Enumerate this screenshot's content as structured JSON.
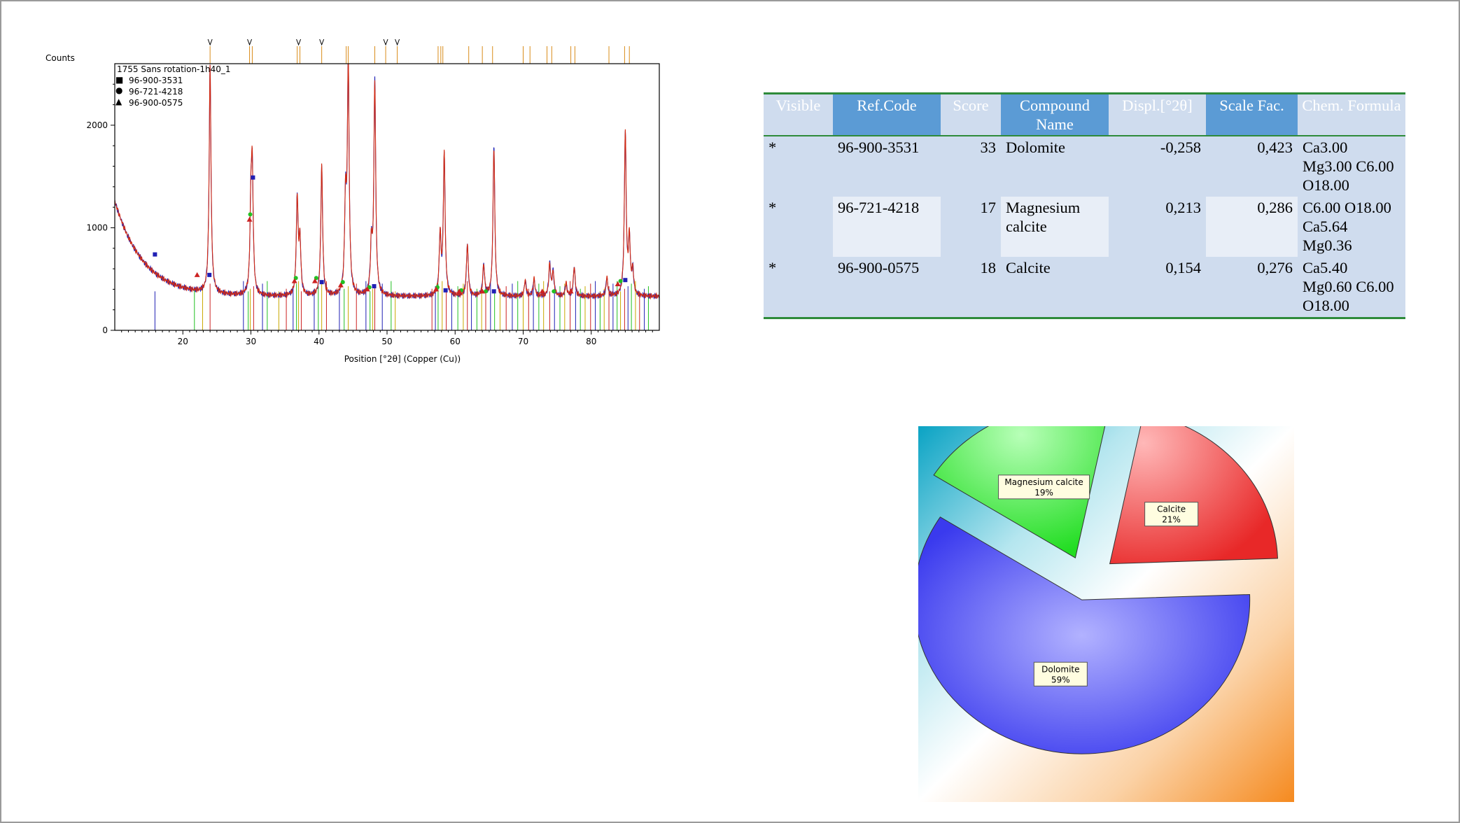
{
  "xrd_plot": {
    "y_axis_title": "Counts",
    "x_axis_title": "Position [°2θ] (Copper (Cu))",
    "legend": [
      {
        "label": "1755 Sans rotation-1h40_1",
        "marker": "",
        "color": "#cc2200"
      },
      {
        "label": "96-900-3531",
        "marker": "■",
        "color": "#1a1aa8"
      },
      {
        "label": "96-721-4218",
        "marker": "●",
        "color": "#22bb22"
      },
      {
        "label": "96-900-0575",
        "marker": "▲",
        "color": "#cc2222"
      }
    ]
  },
  "table": {
    "headers": [
      "Visible",
      "Ref.Code",
      "Score",
      "Compound Name",
      "Displ.[°2θ]",
      "Scale Fac.",
      "Chem. Formula"
    ],
    "rows": [
      {
        "visible": "*",
        "ref_code": "96-900-3531",
        "score": "33",
        "compound": "Dolomite",
        "displ": "-0,258",
        "scale": "0,423",
        "formula": "Ca3.00 Mg3.00 C6.00 O18.00"
      },
      {
        "visible": "*",
        "ref_code": "96-721-4218",
        "score": "17",
        "compound": "Magnesium calcite",
        "displ": "0,213",
        "scale": "0,286",
        "formula": "C6.00 O18.00 Ca5.64 Mg0.36"
      },
      {
        "visible": "*",
        "ref_code": "96-900-0575",
        "score": "18",
        "compound": "Calcite",
        "displ": "0,154",
        "scale": "0,276",
        "formula": "Ca5.40 Mg0.60 C6.00 O18.00"
      }
    ]
  },
  "chart_data": [
    {
      "type": "line",
      "xlabel": "Position [°2θ] (Copper (Cu))",
      "ylabel": "Counts",
      "xlim": [
        10,
        90
      ],
      "ylim": [
        0,
        2600
      ],
      "xticks": [
        20,
        30,
        40,
        50,
        60,
        70,
        80
      ],
      "yticks": [
        0,
        1000,
        2000
      ],
      "legend_position": "top-left",
      "background": {
        "start": 10,
        "start_counts": 1260,
        "base": 330
      },
      "noise": 25,
      "peaks": [
        {
          "x": 24.0,
          "h": 2550
        },
        {
          "x": 30.2,
          "h": 1450
        },
        {
          "x": 30.0,
          "h": 1100
        },
        {
          "x": 36.8,
          "h": 1270
        },
        {
          "x": 37.2,
          "h": 850
        },
        {
          "x": 40.4,
          "h": 1600
        },
        {
          "x": 43.9,
          "h": 1200
        },
        {
          "x": 44.3,
          "h": 2550
        },
        {
          "x": 48.2,
          "h": 2400
        },
        {
          "x": 47.7,
          "h": 800
        },
        {
          "x": 57.8,
          "h": 920
        },
        {
          "x": 58.4,
          "h": 1700
        },
        {
          "x": 61.8,
          "h": 840
        },
        {
          "x": 64.2,
          "h": 630
        },
        {
          "x": 65.7,
          "h": 1780
        },
        {
          "x": 70.3,
          "h": 480
        },
        {
          "x": 71.6,
          "h": 500
        },
        {
          "x": 73.9,
          "h": 640
        },
        {
          "x": 74.4,
          "h": 560
        },
        {
          "x": 76.3,
          "h": 450
        },
        {
          "x": 77.5,
          "h": 620
        },
        {
          "x": 82.3,
          "h": 510
        },
        {
          "x": 85.0,
          "h": 1920
        },
        {
          "x": 85.6,
          "h": 860
        },
        {
          "x": 86.1,
          "h": 560
        }
      ],
      "series": [
        {
          "name": "1755 Sans rotation-1h40_1",
          "color": "#d42a10"
        },
        {
          "name": "96-900-3531",
          "color": "#1f1fb4",
          "markers_x": [
            15.9,
            23.9,
            30.3,
            40.4,
            48.1,
            58.6,
            65.7,
            85.0
          ],
          "markers_y": [
            740,
            540,
            1490,
            470,
            430,
            390,
            380,
            490
          ]
        },
        {
          "name": "96-721-4218",
          "color": "#22c022",
          "markers_x": [
            29.9,
            36.6,
            39.6,
            43.5,
            47.4,
            57.4,
            60.9,
            64.5,
            74.5,
            84.3
          ],
          "markers_y": [
            1130,
            510,
            510,
            470,
            420,
            420,
            390,
            380,
            380,
            480
          ]
        },
        {
          "name": "96-900-0575",
          "color": "#cc2222",
          "markers_x": [
            22.1,
            29.8,
            36.4,
            39.4,
            43.2,
            47.1,
            57.2,
            60.6,
            64.0,
            72.8,
            77.0,
            83.9
          ],
          "markers_y": [
            540,
            1080,
            480,
            480,
            440,
            400,
            400,
            380,
            380,
            380,
            380,
            450
          ]
        }
      ],
      "reference_lines_x": [
        15.9,
        21.7,
        22.9,
        24.0,
        28.9,
        29.6,
        29.9,
        30.4,
        31.7,
        32.4,
        34.1,
        35.2,
        36.2,
        36.7,
        37.0,
        37.4,
        39.3,
        39.9,
        40.4,
        41.1,
        43.0,
        43.7,
        44.3,
        45.5,
        46.9,
        47.5,
        47.9,
        48.2,
        49.3,
        50.6,
        51.2,
        56.6,
        57.1,
        57.5,
        58.1,
        58.7,
        59.5,
        60.4,
        61.2,
        61.8,
        62.4,
        63.2,
        63.9,
        64.5,
        65.2,
        65.8,
        66.6,
        67.5,
        68.4,
        69.2,
        70.0,
        70.8,
        71.5,
        72.3,
        73.0,
        73.9,
        74.6,
        75.4,
        76.1,
        76.9,
        77.7,
        78.4,
        79.1,
        79.9,
        80.6,
        81.3,
        81.9,
        82.6,
        83.2,
        83.8,
        84.3,
        84.9,
        85.4,
        85.9,
        86.5,
        87.1,
        87.8,
        88.4
      ],
      "reference_line_colors": [
        "#1f1fb4",
        "#22c022",
        "#c9a800",
        "#cc2222"
      ],
      "top_sticks_x": [
        24.0,
        29.8,
        30.2,
        36.8,
        37.2,
        40.4,
        44.0,
        44.3,
        48.2,
        49.8,
        51.5,
        57.5,
        57.9,
        58.2,
        62.0,
        64.0,
        65.5,
        70.0,
        71.0,
        73.5,
        74.2,
        77.0,
        77.6,
        82.6,
        84.9,
        85.6
      ],
      "top_arrows_x": [
        24.0,
        29.8,
        37.0,
        40.4,
        49.8,
        51.5
      ]
    },
    {
      "type": "pie",
      "categories": [
        "Dolomite",
        "Magnesium calcite",
        "Calcite"
      ],
      "values": [
        59,
        19,
        21
      ],
      "labels": [
        "59%",
        "19%",
        "21%"
      ],
      "colors": [
        "#4d4df0",
        "#3ce63c",
        "#ee3535"
      ],
      "exploded": true
    }
  ]
}
